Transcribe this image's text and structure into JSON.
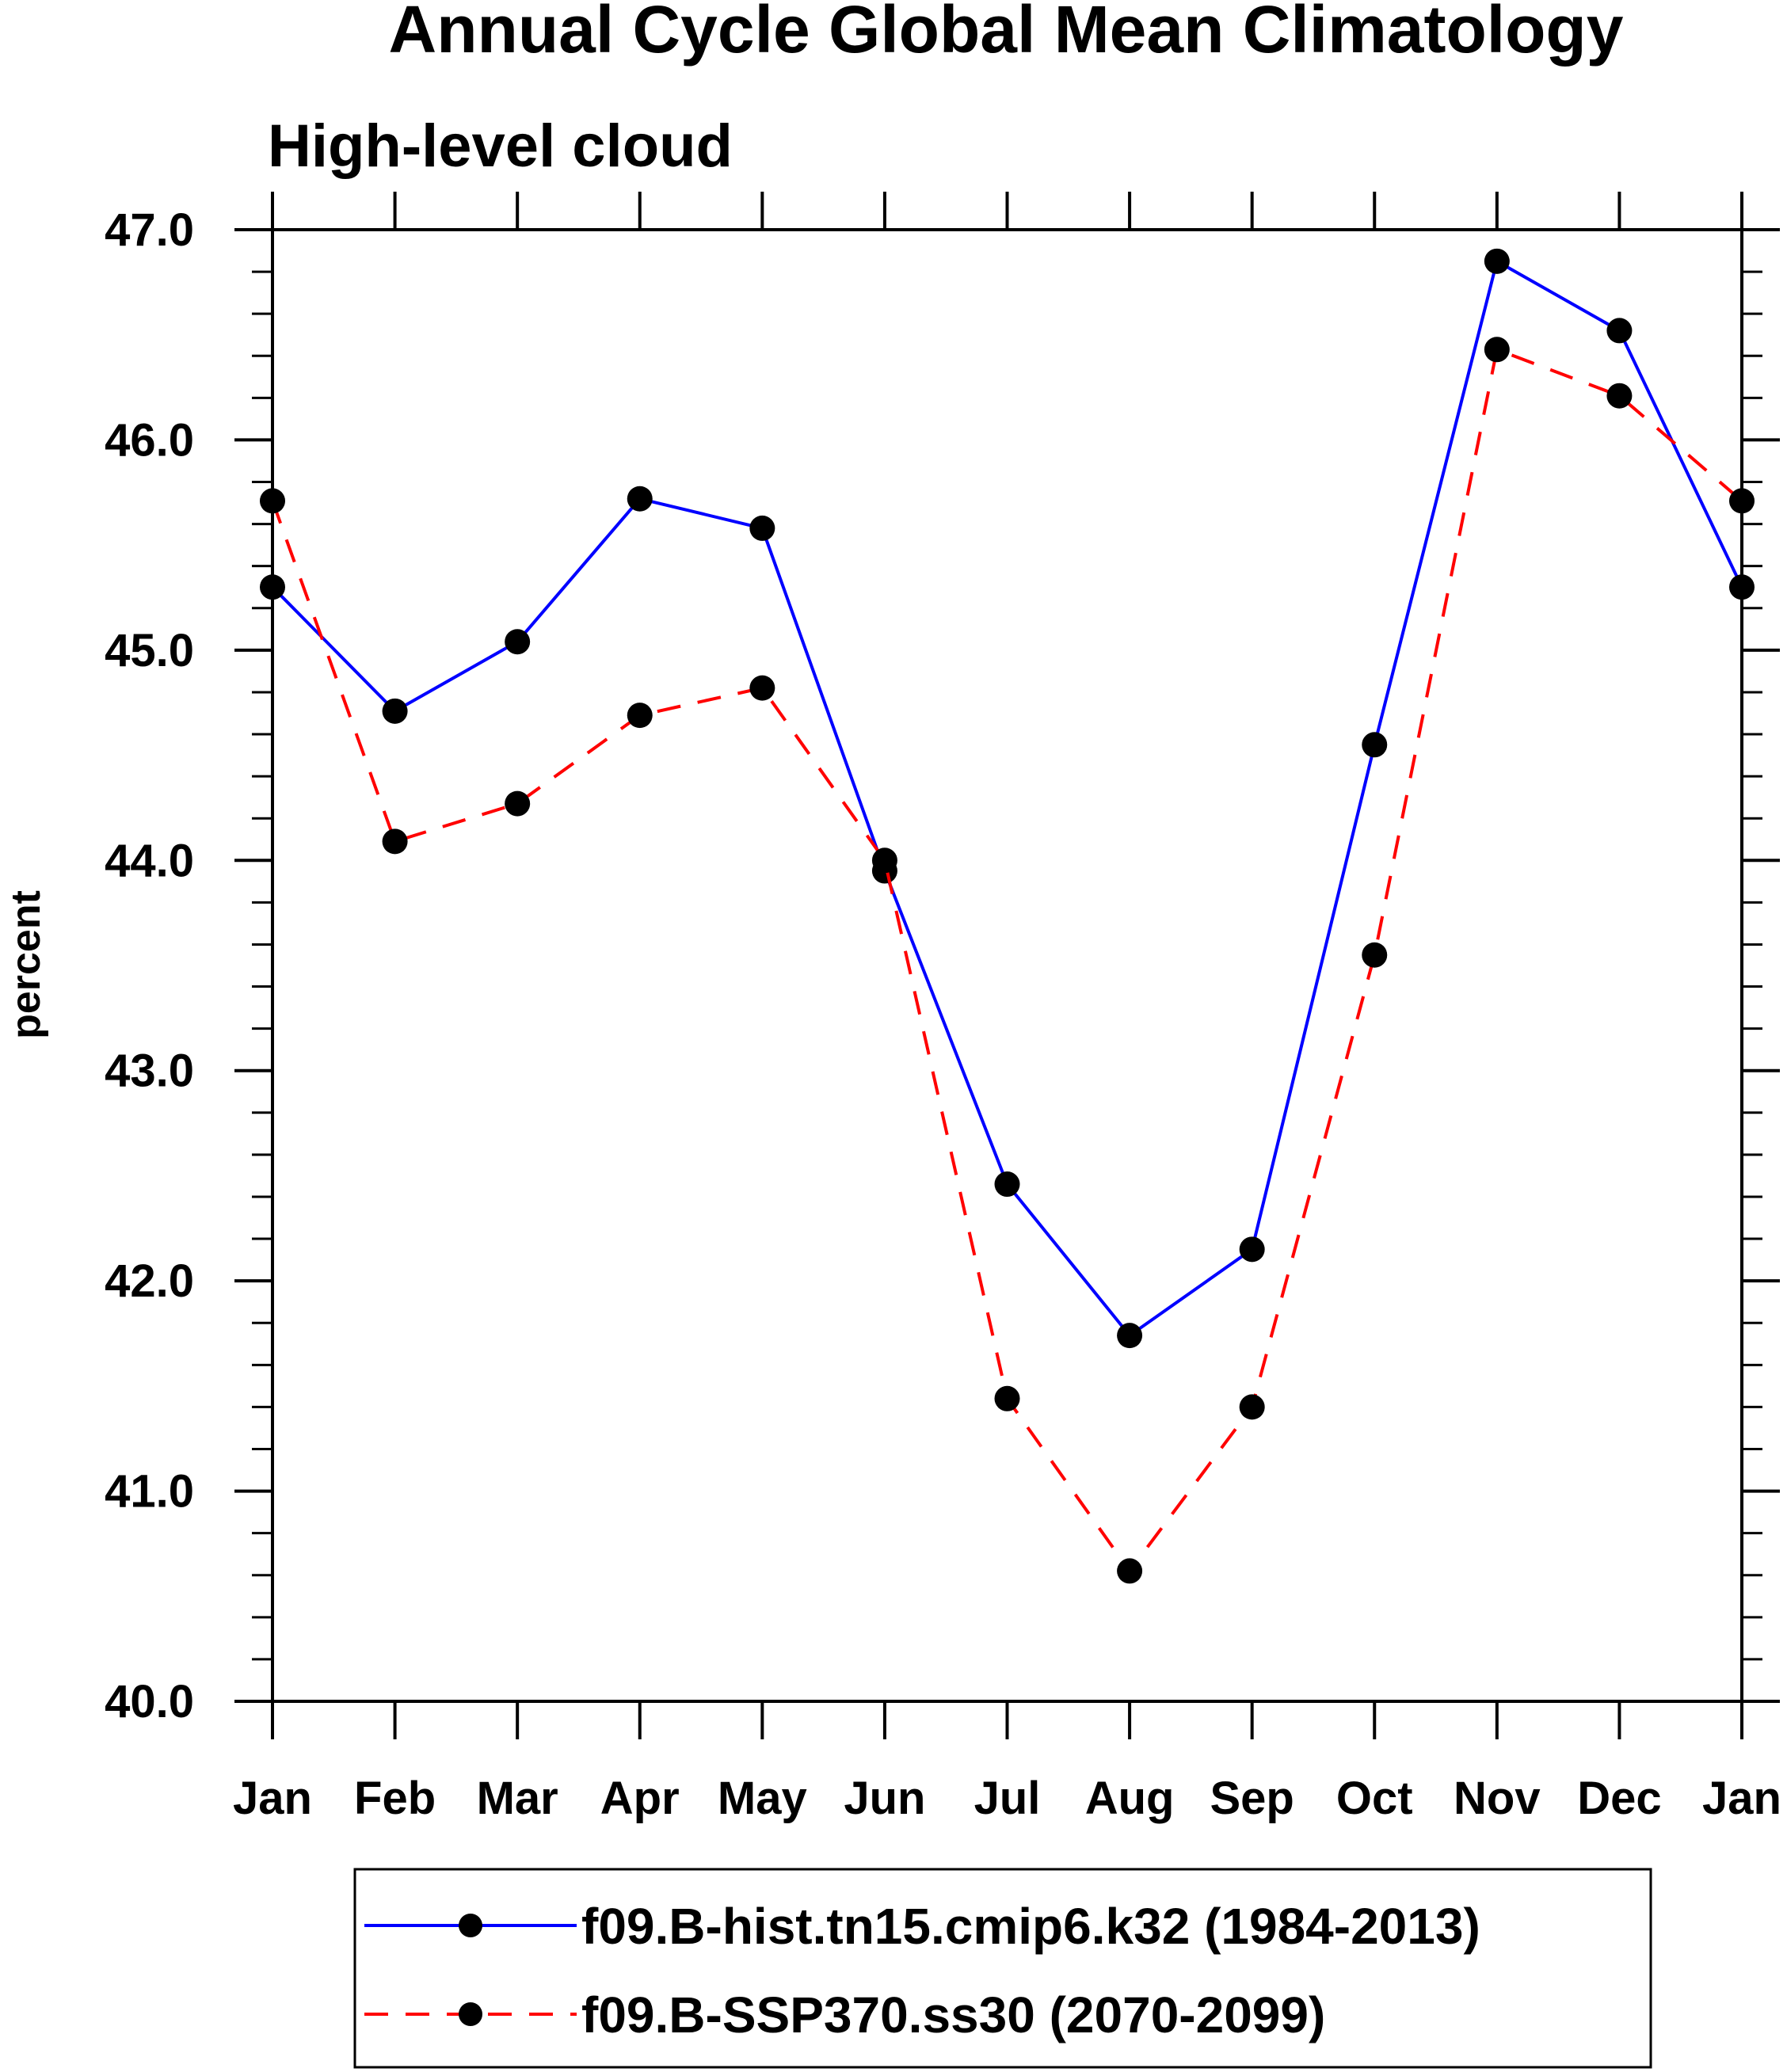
{
  "chart_data": {
    "type": "line",
    "title": "Annual Cycle Global Mean Climatology",
    "subtitle": "High-level cloud",
    "xlabel": "",
    "ylabel": "percent",
    "categories": [
      "Jan",
      "Feb",
      "Mar",
      "Apr",
      "May",
      "Jun",
      "Jul",
      "Aug",
      "Sep",
      "Oct",
      "Nov",
      "Dec",
      "Jan"
    ],
    "ylim": [
      40.0,
      47.0
    ],
    "y_ticks": [
      "40.0",
      "41.0",
      "42.0",
      "43.0",
      "44.0",
      "45.0",
      "46.0",
      "47.0"
    ],
    "grid": false,
    "legend_position": "bottom",
    "series": [
      {
        "name": "f09.B-hist.tn15.cmip6.k32 (1984-2013)",
        "color": "#0000ff",
        "dash": "solid",
        "marker": "filled-circle",
        "values": [
          45.3,
          44.71,
          45.04,
          45.72,
          45.58,
          43.95,
          42.46,
          41.74,
          42.15,
          44.55,
          46.85,
          46.52,
          45.3
        ]
      },
      {
        "name": "f09.B-SSP370.ss30 (2070-2099)",
        "color": "#ff0000",
        "dash": "dashed",
        "marker": "filled-circle",
        "values": [
          45.71,
          44.09,
          44.27,
          44.69,
          44.82,
          44.0,
          41.44,
          40.62,
          41.4,
          43.55,
          46.43,
          46.21,
          45.71
        ]
      }
    ]
  }
}
